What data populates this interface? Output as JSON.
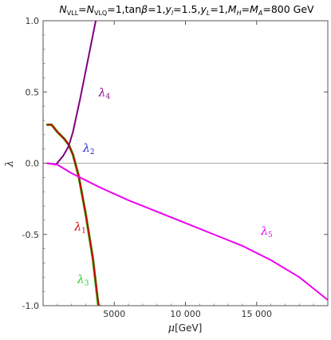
{
  "chart_data": {
    "type": "line",
    "title": "N_VLL=N_VLQ=1,tanβ=1,y_l=1.5,y_L=1,M_H=M_A=800 GeV",
    "title_parts": {
      "n1": "N",
      "n1_sub": "VLL",
      "eq1": "=",
      "n2": "N",
      "n2_sub": "VLQ",
      "eq2": "=1,tan",
      "beta": "β",
      "eq3": "=1,",
      "y1": "y",
      "y1_sub": "l",
      "eq4": "=1.5,",
      "y2": "y",
      "y2_sub": "L",
      "eq5": "=1,",
      "m1": "M",
      "m1_sub": "H",
      "eq6": "=",
      "m2": "M",
      "m2_sub": "A",
      "eq7": "=800 GeV"
    },
    "xlabel": "μ[GeV]",
    "xlabel_parts": {
      "mu": "μ",
      "unit": "[GeV]"
    },
    "ylabel": "λ",
    "xlim": [
      0,
      20000
    ],
    "ylim": [
      -1.0,
      1.0
    ],
    "x_ticks": [
      {
        "value": 5000,
        "label": "5000"
      },
      {
        "value": 10000,
        "label": "10 000"
      },
      {
        "value": 15000,
        "label": "15 000"
      }
    ],
    "y_ticks": [
      {
        "value": 1.0,
        "label": "1.0"
      },
      {
        "value": 0.5,
        "label": "0.5"
      },
      {
        "value": 0.0,
        "label": "0.0"
      },
      {
        "value": -0.5,
        "label": "-0.5"
      },
      {
        "value": -1.0,
        "label": "-1.0"
      }
    ],
    "zero_line": true,
    "grid": false,
    "series": [
      {
        "name": "λ1",
        "label_base": "λ",
        "label_sub": "1",
        "color": "#cc0000",
        "label_pos": [
          2200,
          -0.47
        ],
        "points": [
          [
            300,
            0.27
          ],
          [
            600,
            0.27
          ],
          [
            1000,
            0.22
          ],
          [
            1500,
            0.17
          ],
          [
            1800,
            0.13
          ],
          [
            2100,
            0.06
          ],
          [
            2500,
            -0.09
          ],
          [
            3000,
            -0.36
          ],
          [
            3500,
            -0.67
          ],
          [
            3900,
            -1.0
          ]
        ]
      },
      {
        "name": "λ2",
        "label_base": "λ",
        "label_sub": "2",
        "color": "#2222cc",
        "label_pos": [
          2800,
          0.08
        ],
        "points": [
          [
            300,
            0.27
          ],
          [
            600,
            0.27
          ],
          [
            1000,
            0.22
          ],
          [
            1500,
            0.17
          ],
          [
            1800,
            0.13
          ],
          [
            2100,
            0.06
          ],
          [
            2500,
            -0.09
          ],
          [
            3000,
            -0.36
          ],
          [
            3500,
            -0.67
          ],
          [
            3850,
            -1.0
          ]
        ]
      },
      {
        "name": "λ3",
        "label_base": "λ",
        "label_sub": "3",
        "color": "#22cc22",
        "label_pos": [
          2400,
          -0.84
        ],
        "points": [
          [
            300,
            0.27
          ],
          [
            600,
            0.27
          ],
          [
            1000,
            0.22
          ],
          [
            1500,
            0.17
          ],
          [
            1800,
            0.13
          ],
          [
            2100,
            0.06
          ],
          [
            2500,
            -0.09
          ],
          [
            3000,
            -0.36
          ],
          [
            3500,
            -0.67
          ],
          [
            3880,
            -1.0
          ]
        ]
      },
      {
        "name": "λ4",
        "label_base": "λ",
        "label_sub": "4",
        "color": "#800080",
        "label_pos": [
          3900,
          0.47
        ],
        "points": [
          [
            300,
            0.0
          ],
          [
            900,
            -0.01
          ],
          [
            1400,
            0.05
          ],
          [
            1800,
            0.12
          ],
          [
            2100,
            0.22
          ],
          [
            2600,
            0.45
          ],
          [
            3100,
            0.7
          ],
          [
            3700,
            1.0
          ]
        ]
      },
      {
        "name": "λ5",
        "label_base": "λ",
        "label_sub": "5",
        "color": "#ee00ee",
        "label_pos": [
          15300,
          -0.5
        ],
        "points": [
          [
            300,
            0.0
          ],
          [
            1000,
            -0.01
          ],
          [
            1500,
            -0.04
          ],
          [
            2000,
            -0.07
          ],
          [
            3000,
            -0.12
          ],
          [
            4000,
            -0.17
          ],
          [
            6000,
            -0.26
          ],
          [
            8000,
            -0.34
          ],
          [
            10000,
            -0.42
          ],
          [
            12000,
            -0.5
          ],
          [
            14000,
            -0.58
          ],
          [
            16000,
            -0.68
          ],
          [
            18000,
            -0.8
          ],
          [
            20000,
            -0.96
          ]
        ]
      }
    ]
  }
}
